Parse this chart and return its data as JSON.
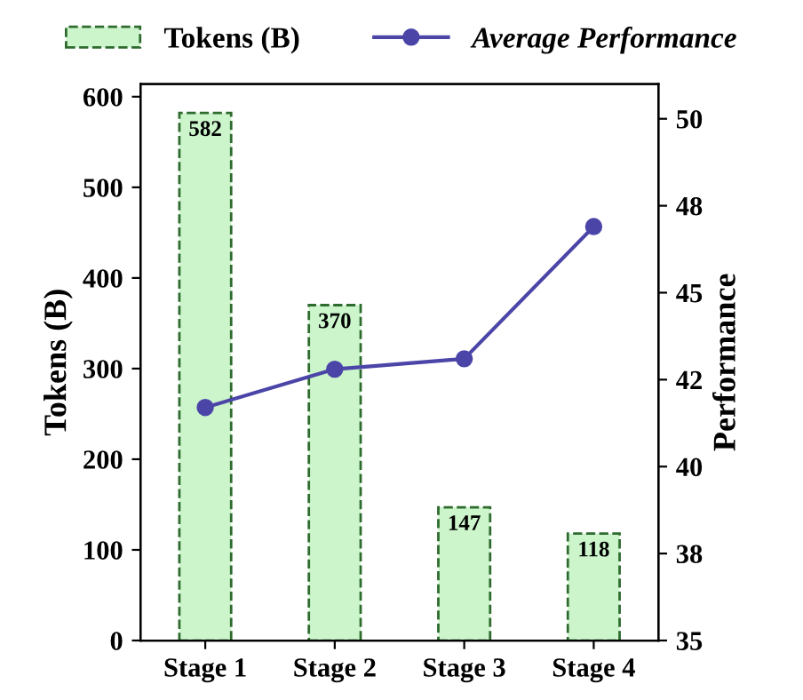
{
  "chart_data": {
    "type": "bar",
    "categories": [
      "Stage 1",
      "Stage 2",
      "Stage 3",
      "Stage 4"
    ],
    "ylabel": "Tokens (B)",
    "y2label": "Performance",
    "series": [
      {
        "name": "Tokens (B)",
        "color": "#ccf5cc",
        "values": [
          582,
          370,
          147,
          118
        ],
        "value_labels": [
          "582",
          "370",
          "147",
          "118"
        ]
      },
      {
        "name": "Average Performance",
        "type": "line",
        "axis": "y2",
        "color": "#4b45a8",
        "values": [
          41.7,
          42.8,
          43.1,
          46.9
        ]
      }
    ],
    "ylim": [
      0,
      614
    ],
    "yticks": [
      0,
      100,
      200,
      300,
      400,
      500,
      600
    ],
    "y2lim": [
      35,
      51
    ],
    "y2ticks": [
      35,
      {
        "value": 37.5,
        "label": "38"
      },
      40,
      {
        "value": 42.5,
        "label": "42"
      },
      45,
      {
        "value": 47.5,
        "label": "48"
      },
      50
    ],
    "marker": "circle",
    "line_style": "solid",
    "legend": "top",
    "grid": false
  }
}
